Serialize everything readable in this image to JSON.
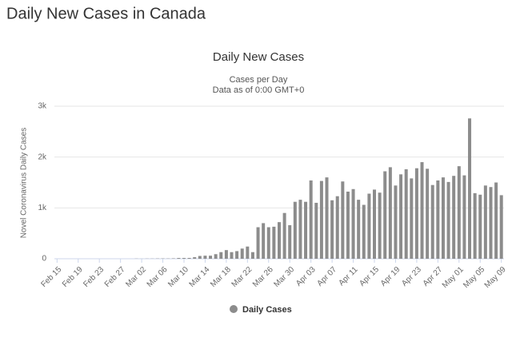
{
  "page_title": "Daily New Cases in Canada",
  "chart_data": {
    "type": "bar",
    "title": "Daily New Cases",
    "subtitle": [
      "Cases per Day",
      "Data as of 0:00 GMT+0"
    ],
    "y_label": "Novel Coronavirus Daily Cases",
    "categories": [
      "Feb 15",
      null,
      null,
      null,
      "Feb 19",
      null,
      null,
      null,
      "Feb 23",
      null,
      null,
      null,
      "Feb 27",
      null,
      null,
      null,
      "Mar 02",
      null,
      null,
      null,
      "Mar 06",
      null,
      null,
      null,
      "Mar 10",
      null,
      null,
      null,
      "Mar 14",
      null,
      null,
      null,
      "Mar 18",
      null,
      null,
      null,
      "Mar 22",
      null,
      null,
      null,
      "Mar 26",
      null,
      null,
      null,
      "Mar 30",
      null,
      null,
      null,
      "Apr 03",
      null,
      null,
      null,
      "Apr 07",
      null,
      null,
      null,
      "Apr 11",
      null,
      null,
      null,
      "Apr 15",
      null,
      null,
      null,
      "Apr 19",
      null,
      null,
      null,
      "Apr 23",
      null,
      null,
      null,
      "Apr 27",
      null,
      null,
      null,
      "May 01",
      null,
      null,
      null,
      "May 05",
      null,
      null,
      null,
      "May 09"
    ],
    "series": [
      {
        "name": "Daily Cases",
        "color": "#8c8c8c",
        "values": [
          0,
          0,
          0,
          0,
          0,
          0,
          0,
          0,
          0,
          0,
          0,
          0,
          0,
          0,
          0,
          3,
          1,
          3,
          3,
          5,
          6,
          5,
          8,
          15,
          15,
          16,
          30,
          55,
          60,
          60,
          90,
          130,
          170,
          130,
          150,
          200,
          240,
          130,
          620,
          700,
          620,
          630,
          720,
          900,
          660,
          1120,
          1160,
          1120,
          1540,
          1100,
          1530,
          1600,
          1150,
          1230,
          1520,
          1320,
          1370,
          1160,
          1060,
          1280,
          1360,
          1300,
          1720,
          1800,
          1440,
          1660,
          1760,
          1580,
          1780,
          1900,
          1770,
          1450,
          1540,
          1600,
          1510,
          1630,
          1820,
          1640,
          2760,
          1290,
          1260,
          1440,
          1410,
          1500,
          1250
        ]
      }
    ],
    "ylim": [
      0,
      3000
    ],
    "yticks": [
      0,
      {
        "value": 1000,
        "label": "1k"
      },
      {
        "value": 2000,
        "label": "2k"
      },
      {
        "value": 3000,
        "label": "3k"
      }
    ],
    "grid": true
  }
}
